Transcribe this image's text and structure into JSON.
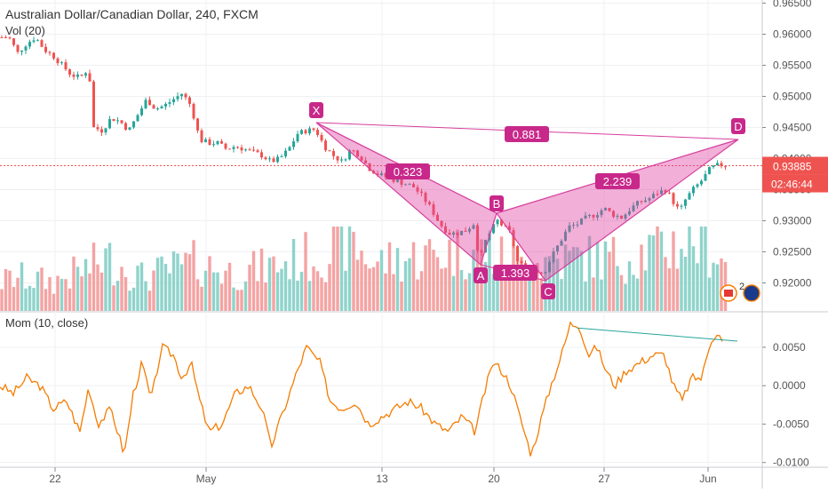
{
  "header": {
    "symbol_title": "Australian Dollar/Canadian Dollar, 240, FXCM",
    "volume_label": "Vol (20)",
    "momentum_label": "Mom (10, close)"
  },
  "price_badges": {
    "last_price": "0.93885",
    "countdown": "02:46:44"
  },
  "pattern": {
    "name_points": [
      "X",
      "A",
      "B",
      "C",
      "D"
    ],
    "ratios": {
      "xb": "0.323",
      "ac": "1.393",
      "bd": "2.239",
      "xd": "0.881"
    },
    "fill_color": "#e040a0"
  },
  "flag_badge_text": "2",
  "colors": {
    "bull": "#26a69a",
    "bear": "#ef5350",
    "vol_bull": "#8fd3cb",
    "vol_bear": "#f4a3a3",
    "pattern": "#d63e9e",
    "momentum": "#f57c00",
    "divergence": "#26a69a",
    "last_price": "#ef5350"
  },
  "chart_data": [
    {
      "type": "candlestick",
      "title": "Australian Dollar/Canadian Dollar, 240, FXCM",
      "y_axis_ticks": [
        "0.96500",
        "0.96000",
        "0.95500",
        "0.95000",
        "0.94500",
        "0.94000",
        "0.93500",
        "0.93000",
        "0.92500",
        "0.92000"
      ],
      "x_axis_ticks": [
        "22",
        "May",
        "13",
        "20",
        "27",
        "Jun"
      ],
      "ylim": [
        0.9155,
        0.9655
      ],
      "last_price": 0.93885,
      "anchors": [
        {
          "x": 0,
          "y": 0.9595
        },
        {
          "x": 10,
          "y": 0.9595
        },
        {
          "x": 20,
          "y": 0.957
        },
        {
          "x": 30,
          "y": 0.9585
        },
        {
          "x": 40,
          "y": 0.9595
        },
        {
          "x": 50,
          "y": 0.9575
        },
        {
          "x": 60,
          "y": 0.9565
        },
        {
          "x": 70,
          "y": 0.955
        },
        {
          "x": 80,
          "y": 0.9535
        },
        {
          "x": 90,
          "y": 0.953
        },
        {
          "x": 100,
          "y": 0.9545
        },
        {
          "x": 105,
          "y": 0.945
        },
        {
          "x": 115,
          "y": 0.9445
        },
        {
          "x": 125,
          "y": 0.9465
        },
        {
          "x": 135,
          "y": 0.946
        },
        {
          "x": 145,
          "y": 0.9445
        },
        {
          "x": 155,
          "y": 0.947
        },
        {
          "x": 165,
          "y": 0.9495
        },
        {
          "x": 175,
          "y": 0.948
        },
        {
          "x": 185,
          "y": 0.9485
        },
        {
          "x": 195,
          "y": 0.9495
        },
        {
          "x": 205,
          "y": 0.9505
        },
        {
          "x": 215,
          "y": 0.9485
        },
        {
          "x": 225,
          "y": 0.943
        },
        {
          "x": 235,
          "y": 0.9425
        },
        {
          "x": 245,
          "y": 0.9425
        },
        {
          "x": 255,
          "y": 0.9415
        },
        {
          "x": 265,
          "y": 0.942
        },
        {
          "x": 275,
          "y": 0.9415
        },
        {
          "x": 285,
          "y": 0.941
        },
        {
          "x": 295,
          "y": 0.9405
        },
        {
          "x": 305,
          "y": 0.9395
        },
        {
          "x": 315,
          "y": 0.94
        },
        {
          "x": 325,
          "y": 0.9415
        },
        {
          "x": 335,
          "y": 0.944
        },
        {
          "x": 345,
          "y": 0.9445
        },
        {
          "x": 355,
          "y": 0.9447
        },
        {
          "x": 365,
          "y": 0.942
        },
        {
          "x": 375,
          "y": 0.9405
        },
        {
          "x": 385,
          "y": 0.9395
        },
        {
          "x": 395,
          "y": 0.9415
        },
        {
          "x": 405,
          "y": 0.9405
        },
        {
          "x": 415,
          "y": 0.9385
        },
        {
          "x": 425,
          "y": 0.9375
        },
        {
          "x": 435,
          "y": 0.937
        },
        {
          "x": 445,
          "y": 0.9365
        },
        {
          "x": 455,
          "y": 0.936
        },
        {
          "x": 465,
          "y": 0.9355
        },
        {
          "x": 475,
          "y": 0.934
        },
        {
          "x": 485,
          "y": 0.932
        },
        {
          "x": 495,
          "y": 0.9295
        },
        {
          "x": 505,
          "y": 0.928
        },
        {
          "x": 515,
          "y": 0.928
        },
        {
          "x": 525,
          "y": 0.9285
        },
        {
          "x": 533,
          "y": 0.9295
        },
        {
          "x": 540,
          "y": 0.9235
        },
        {
          "x": 547,
          "y": 0.927
        },
        {
          "x": 553,
          "y": 0.9285
        },
        {
          "x": 560,
          "y": 0.93
        },
        {
          "x": 567,
          "y": 0.929
        },
        {
          "x": 575,
          "y": 0.928
        },
        {
          "x": 582,
          "y": 0.9235
        },
        {
          "x": 590,
          "y": 0.9225
        },
        {
          "x": 598,
          "y": 0.922
        },
        {
          "x": 605,
          "y": 0.922
        },
        {
          "x": 612,
          "y": 0.9215
        },
        {
          "x": 620,
          "y": 0.924
        },
        {
          "x": 630,
          "y": 0.9265
        },
        {
          "x": 640,
          "y": 0.929
        },
        {
          "x": 650,
          "y": 0.9295
        },
        {
          "x": 660,
          "y": 0.9305
        },
        {
          "x": 670,
          "y": 0.931
        },
        {
          "x": 680,
          "y": 0.932
        },
        {
          "x": 690,
          "y": 0.931
        },
        {
          "x": 700,
          "y": 0.9305
        },
        {
          "x": 710,
          "y": 0.932
        },
        {
          "x": 720,
          "y": 0.933
        },
        {
          "x": 730,
          "y": 0.9335
        },
        {
          "x": 740,
          "y": 0.9345
        },
        {
          "x": 750,
          "y": 0.935
        },
        {
          "x": 758,
          "y": 0.933
        },
        {
          "x": 765,
          "y": 0.9315
        },
        {
          "x": 772,
          "y": 0.9335
        },
        {
          "x": 780,
          "y": 0.935
        },
        {
          "x": 790,
          "y": 0.9365
        },
        {
          "x": 800,
          "y": 0.9385
        },
        {
          "x": 810,
          "y": 0.939
        },
        {
          "x": 818,
          "y": 0.9388
        }
      ],
      "volume": [
        {
          "x": 0,
          "v": 0.3
        },
        {
          "x": 20,
          "v": 0.35
        },
        {
          "x": 60,
          "v": 0.3
        },
        {
          "x": 100,
          "v": 0.45
        },
        {
          "x": 120,
          "v": 0.55
        },
        {
          "x": 160,
          "v": 0.35
        },
        {
          "x": 220,
          "v": 0.5
        },
        {
          "x": 260,
          "v": 0.4
        },
        {
          "x": 300,
          "v": 0.45
        },
        {
          "x": 340,
          "v": 0.55
        },
        {
          "x": 370,
          "v": 0.6
        },
        {
          "x": 390,
          "v": 0.75
        },
        {
          "x": 420,
          "v": 0.5
        },
        {
          "x": 460,
          "v": 0.55
        },
        {
          "x": 500,
          "v": 0.6
        },
        {
          "x": 540,
          "v": 0.65
        },
        {
          "x": 560,
          "v": 0.55
        },
        {
          "x": 600,
          "v": 0.5
        },
        {
          "x": 650,
          "v": 0.55
        },
        {
          "x": 700,
          "v": 0.55
        },
        {
          "x": 740,
          "v": 0.65
        },
        {
          "x": 790,
          "v": 0.75
        },
        {
          "x": 818,
          "v": 0.5
        }
      ],
      "series": [
        {
          "name": "",
          "values": []
        }
      ]
    },
    {
      "type": "line",
      "title": "Mom (10, close)",
      "y_axis_ticks": [
        "0.0050",
        "0.0000",
        "-0.0050",
        "-0.0100"
      ],
      "ylim": [
        -0.0105,
        0.0095
      ],
      "anchors": [
        {
          "x": 0,
          "y": 0.0
        },
        {
          "x": 15,
          "y": -0.001
        },
        {
          "x": 30,
          "y": 0.001
        },
        {
          "x": 45,
          "y": 0.0
        },
        {
          "x": 60,
          "y": -0.003
        },
        {
          "x": 75,
          "y": -0.002
        },
        {
          "x": 90,
          "y": -0.006
        },
        {
          "x": 100,
          "y": 0.0
        },
        {
          "x": 110,
          "y": -0.005
        },
        {
          "x": 125,
          "y": -0.003
        },
        {
          "x": 140,
          "y": -0.009
        },
        {
          "x": 150,
          "y": -0.001
        },
        {
          "x": 160,
          "y": 0.003
        },
        {
          "x": 170,
          "y": -0.002
        },
        {
          "x": 182,
          "y": 0.005
        },
        {
          "x": 195,
          "y": 0.004
        },
        {
          "x": 205,
          "y": 0.001
        },
        {
          "x": 215,
          "y": 0.003
        },
        {
          "x": 225,
          "y": -0.002
        },
        {
          "x": 235,
          "y": -0.006
        },
        {
          "x": 250,
          "y": -0.005
        },
        {
          "x": 265,
          "y": -0.001
        },
        {
          "x": 280,
          "y": 0.0
        },
        {
          "x": 295,
          "y": -0.003
        },
        {
          "x": 305,
          "y": -0.008
        },
        {
          "x": 320,
          "y": -0.003
        },
        {
          "x": 335,
          "y": 0.002
        },
        {
          "x": 345,
          "y": 0.005
        },
        {
          "x": 360,
          "y": 0.003
        },
        {
          "x": 372,
          "y": -0.002
        },
        {
          "x": 385,
          "y": -0.003
        },
        {
          "x": 400,
          "y": -0.002
        },
        {
          "x": 415,
          "y": -0.005
        },
        {
          "x": 430,
          "y": -0.004
        },
        {
          "x": 445,
          "y": -0.003
        },
        {
          "x": 460,
          "y": -0.002
        },
        {
          "x": 475,
          "y": -0.003
        },
        {
          "x": 490,
          "y": -0.005
        },
        {
          "x": 505,
          "y": -0.006
        },
        {
          "x": 520,
          "y": -0.004
        },
        {
          "x": 535,
          "y": -0.006
        },
        {
          "x": 545,
          "y": -0.001
        },
        {
          "x": 555,
          "y": 0.003
        },
        {
          "x": 565,
          "y": 0.002
        },
        {
          "x": 575,
          "y": 0.0
        },
        {
          "x": 585,
          "y": -0.004
        },
        {
          "x": 598,
          "y": -0.009
        },
        {
          "x": 610,
          "y": -0.004
        },
        {
          "x": 620,
          "y": 0.0
        },
        {
          "x": 632,
          "y": 0.004
        },
        {
          "x": 642,
          "y": 0.008
        },
        {
          "x": 652,
          "y": 0.008
        },
        {
          "x": 662,
          "y": 0.004
        },
        {
          "x": 672,
          "y": 0.005
        },
        {
          "x": 682,
          "y": 0.002
        },
        {
          "x": 692,
          "y": 0.0
        },
        {
          "x": 705,
          "y": 0.002
        },
        {
          "x": 720,
          "y": 0.003
        },
        {
          "x": 735,
          "y": 0.004
        },
        {
          "x": 748,
          "y": 0.004
        },
        {
          "x": 758,
          "y": 0.0
        },
        {
          "x": 768,
          "y": -0.002
        },
        {
          "x": 778,
          "y": 0.001
        },
        {
          "x": 790,
          "y": 0.001
        },
        {
          "x": 800,
          "y": 0.006
        },
        {
          "x": 808,
          "y": 0.007
        },
        {
          "x": 815,
          "y": 0.005
        }
      ],
      "divergence_line": [
        {
          "x": 650,
          "y": 0.0075
        },
        {
          "x": 830,
          "y": 0.0058
        }
      ]
    }
  ]
}
